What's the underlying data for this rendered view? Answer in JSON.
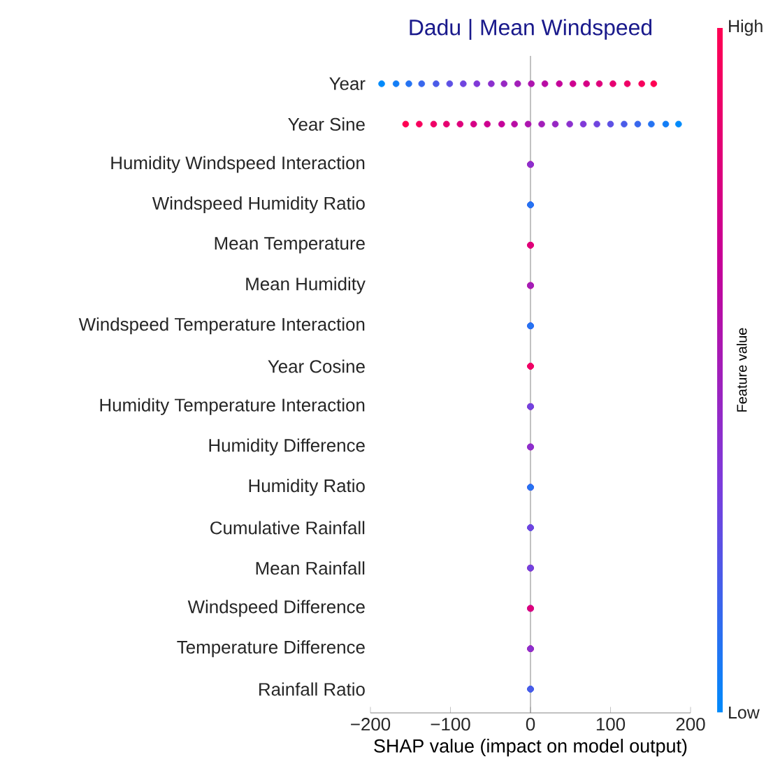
{
  "chart_data": {
    "type": "scatter",
    "orientation": "horizontal",
    "title": "Dadu | Mean Windspeed",
    "xlabel": "SHAP value (impact on model output)",
    "clabel": "Feature value",
    "annotations": [
      "High",
      "Low"
    ],
    "categories": [
      "Year",
      "Year Sine",
      "Humidity Windspeed Interaction",
      "Windspeed Humidity Ratio",
      "Mean Temperature",
      "Mean Humidity",
      "Windspeed Temperature Interaction",
      "Year Cosine",
      "Humidity Temperature Interaction",
      "Humidity Difference",
      "Humidity Ratio",
      "Cumulative Rainfall",
      "Mean Rainfall",
      "Windspeed Difference",
      "Temperature Difference",
      "Rainfall Ratio"
    ],
    "series": [
      {
        "x": [
          "Year",
          "Year",
          "Year",
          "Year",
          "Year",
          "Year",
          "Year",
          "Year",
          "Year",
          "Year",
          "Year",
          "Year",
          "Year",
          "Year",
          "Year",
          "Year",
          "Year",
          "Year",
          "Year",
          "Year",
          "Year"
        ],
        "values": [
          -186,
          -168,
          -152,
          -136,
          -118,
          -101,
          -84,
          -67,
          -49,
          -33,
          -16,
          1,
          18,
          36,
          53,
          70,
          86,
          103,
          121,
          139,
          154
        ],
        "colors": [
          "#008afb",
          "#137ef6",
          "#2573f2",
          "#3867ed",
          "#4a5be8",
          "#5d50e4",
          "#7044df",
          "#8039d8",
          "#8b30ce",
          "#9727c3",
          "#a21eb9",
          "#ad15af",
          "#b90ca4",
          "#c40399",
          "#ce008f",
          "#d60085",
          "#de007b",
          "#e60070",
          "#ef0066",
          "#f7005c",
          "#ff0052"
        ]
      },
      {
        "x": [
          "Year Sine",
          "Year Sine",
          "Year Sine",
          "Year Sine",
          "Year Sine",
          "Year Sine",
          "Year Sine",
          "Year Sine",
          "Year Sine",
          "Year Sine",
          "Year Sine",
          "Year Sine",
          "Year Sine",
          "Year Sine",
          "Year Sine",
          "Year Sine",
          "Year Sine",
          "Year Sine",
          "Year Sine",
          "Year Sine",
          "Year Sine"
        ],
        "values": [
          -156,
          -139,
          -121,
          -105,
          -88,
          -71,
          -54,
          -36,
          -20,
          -3,
          14,
          31,
          49,
          66,
          83,
          100,
          117,
          134,
          151,
          169,
          185
        ],
        "colors": [
          "#ff0052",
          "#f7005c",
          "#ef0066",
          "#e60070",
          "#de007b",
          "#d60085",
          "#ce008f",
          "#c40399",
          "#b90ca4",
          "#ad15af",
          "#a21eb9",
          "#9727c3",
          "#8b30ce",
          "#8039d8",
          "#7044df",
          "#5d50e4",
          "#4a5be8",
          "#3867ed",
          "#2573f2",
          "#137ef6",
          "#008afb"
        ]
      },
      {
        "x": [
          "Humidity Windspeed Interaction",
          "Humidity Windspeed Interaction",
          "Humidity Windspeed Interaction"
        ],
        "values": [
          0,
          0,
          0
        ],
        "colors": [
          "#de007b",
          "#b90ca4",
          "#8b30ce"
        ]
      },
      {
        "x": [
          "Windspeed Humidity Ratio",
          "Windspeed Humidity Ratio",
          "Windspeed Humidity Ratio"
        ],
        "values": [
          0,
          0,
          0
        ],
        "colors": [
          "#7044df",
          "#4a5be8",
          "#2573f2"
        ]
      },
      {
        "x": [
          "Mean Temperature",
          "Mean Temperature",
          "Mean Temperature"
        ],
        "values": [
          0,
          0,
          0
        ],
        "colors": [
          "#ff0052",
          "#ef0066",
          "#de007b"
        ]
      },
      {
        "x": [
          "Mean Humidity",
          "Mean Humidity",
          "Mean Humidity"
        ],
        "values": [
          0,
          0,
          0
        ],
        "colors": [
          "#ef0066",
          "#ce008f",
          "#a21eb9"
        ]
      },
      {
        "x": [
          "Windspeed Temperature Interaction",
          "Windspeed Temperature Interaction",
          "Windspeed Temperature Interaction"
        ],
        "values": [
          0,
          0,
          0
        ],
        "colors": [
          "#7044df",
          "#4a5be8",
          "#2573f2"
        ]
      },
      {
        "x": [
          "Year Cosine",
          "Year Cosine",
          "Year Cosine"
        ],
        "values": [
          0,
          0,
          0
        ],
        "colors": [
          "#ff0052",
          "#f7005c",
          "#ef0066"
        ]
      },
      {
        "x": [
          "Humidity Temperature Interaction",
          "Humidity Temperature Interaction",
          "Humidity Temperature Interaction"
        ],
        "values": [
          0,
          0,
          0
        ],
        "colors": [
          "#8b30ce",
          "#b90ca4",
          "#7044df"
        ]
      },
      {
        "x": [
          "Humidity Difference",
          "Humidity Difference",
          "Humidity Difference"
        ],
        "values": [
          0,
          0,
          0
        ],
        "colors": [
          "#ce008f",
          "#a21eb9",
          "#8b30ce"
        ]
      },
      {
        "x": [
          "Humidity Ratio",
          "Humidity Ratio",
          "Humidity Ratio"
        ],
        "values": [
          0,
          0,
          0
        ],
        "colors": [
          "#4a5be8",
          "#8b30ce",
          "#2573f2"
        ]
      },
      {
        "x": [
          "Cumulative Rainfall",
          "Cumulative Rainfall",
          "Cumulative Rainfall"
        ],
        "values": [
          0,
          0,
          0
        ],
        "colors": [
          "#2573f2",
          "#4a5be8",
          "#7044df"
        ]
      },
      {
        "x": [
          "Mean Rainfall",
          "Mean Rainfall",
          "Mean Rainfall"
        ],
        "values": [
          0,
          0,
          0
        ],
        "colors": [
          "#ce008f",
          "#a21eb9",
          "#7044df"
        ]
      },
      {
        "x": [
          "Windspeed Difference",
          "Windspeed Difference",
          "Windspeed Difference"
        ],
        "values": [
          0,
          0,
          0
        ],
        "colors": [
          "#8b30ce",
          "#b90ca4",
          "#de007b"
        ]
      },
      {
        "x": [
          "Temperature Difference",
          "Temperature Difference",
          "Temperature Difference"
        ],
        "values": [
          0,
          0,
          0
        ],
        "colors": [
          "#ef0066",
          "#b90ca4",
          "#8b30ce"
        ]
      },
      {
        "x": [
          "Rainfall Ratio",
          "Rainfall Ratio",
          "Rainfall Ratio"
        ],
        "values": [
          0,
          0,
          0
        ],
        "colors": [
          "#2573f2",
          "#2573f2",
          "#4a5be8"
        ]
      }
    ],
    "xlim": [
      -200,
      200
    ],
    "xticks": [
      {
        "value": -200,
        "label": "−200"
      },
      {
        "value": -100,
        "label": "−100"
      },
      0,
      100,
      200
    ],
    "ref_lines": [
      {
        "axis": "x",
        "value": 0,
        "color": "#666666"
      }
    ],
    "grid": false
  }
}
